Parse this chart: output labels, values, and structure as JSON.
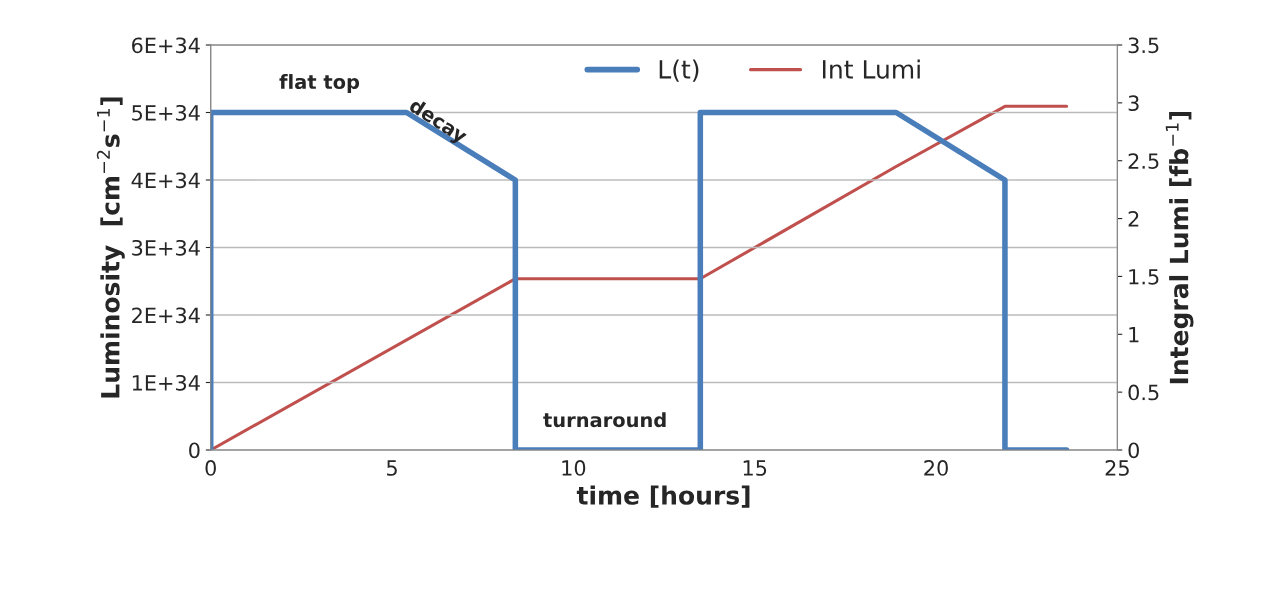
{
  "chart_data": {
    "type": "line",
    "xlabel": "time [hours]",
    "ylabel": "Luminosity  [cm$^{−2}$s$^{−1}$]",
    "y2label": "Integral Lumi [fb$^{−1}$]",
    "series": [
      {
        "name": "L(t)",
        "color": "#4a7ebb",
        "x": [
          0,
          0,
          5.4,
          8.4,
          8.4,
          13.5,
          13.5,
          18.9,
          21.9,
          21.9,
          23.6
        ],
        "values": [
          0,
          5e+34,
          5e+34,
          4e+34,
          0,
          0,
          5e+34,
          5e+34,
          4e+34,
          0,
          0
        ]
      },
      {
        "name": "Int Lumi",
        "color": "#c0504d",
        "axis": "y2",
        "x": [
          0,
          8.4,
          13.5,
          18.9,
          21.9,
          23.6
        ],
        "values": [
          0,
          1.48,
          1.48,
          2.45,
          2.97,
          2.97
        ]
      }
    ],
    "xlim": [
      0,
      25
    ],
    "xticks": [
      0,
      5,
      10,
      15,
      20,
      25
    ],
    "ylim": [
      0,
      6e+34
    ],
    "yticks": [
      0,
      {
        "value": 1e+34,
        "label": "1E+34"
      },
      {
        "value": 2e+34,
        "label": "2E+34"
      },
      {
        "value": 3e+34,
        "label": "3E+34"
      },
      {
        "value": 4e+34,
        "label": "4E+34"
      },
      {
        "value": 5e+34,
        "label": "5E+34"
      },
      {
        "value": 6e+34,
        "label": "6E+34"
      }
    ],
    "y2lim": [
      0,
      3.5
    ],
    "y2ticks": [
      0,
      0.5,
      1,
      1.5,
      2,
      2.5,
      3,
      3.5
    ],
    "grid": "y",
    "legend": "top",
    "line_style": "solid",
    "marker": "none",
    "annotations": [
      "flat top",
      "decay",
      "turnaround"
    ]
  }
}
